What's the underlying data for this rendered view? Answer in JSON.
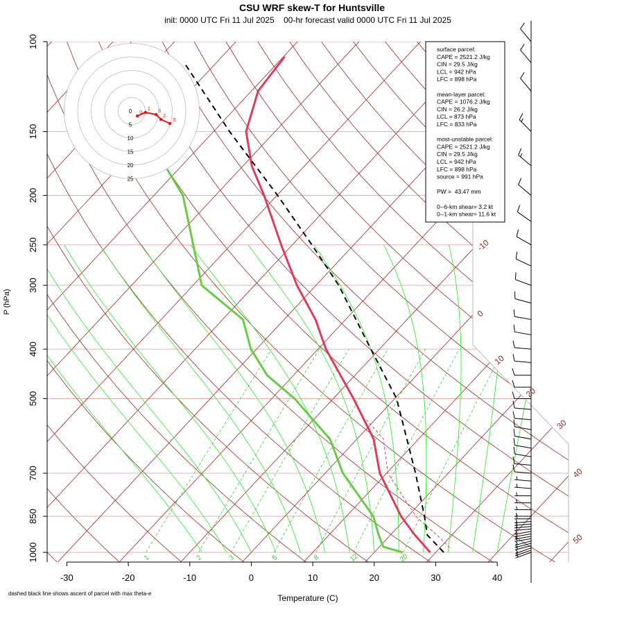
{
  "chart_data": {
    "type": "skewt",
    "title": "CSU WRF skew-T for Huntsville",
    "subtitle": "init: 0000 UTC Fri 11 Jul 2025    00-hr forecast valid 0000 UTC Fri 11 Jul 2025",
    "x_label": "Temperature (C)",
    "y_label": "P (hPa)",
    "note": "dashed black line shows ascent of parcel with max theta-e",
    "xlim": [
      -33.2,
      51.6
    ],
    "xticks": [
      -30,
      -20,
      -10,
      0,
      10,
      20,
      30,
      40
    ],
    "ylim": [
      1000,
      100
    ],
    "yticks": [
      100,
      150,
      200,
      250,
      300,
      400,
      500,
      700,
      850,
      1000
    ],
    "log_y": true,
    "isotherm_labels": [
      -10,
      0,
      10,
      20,
      30,
      40,
      50
    ],
    "mixing_ratio_labels": [
      1,
      2,
      3,
      5,
      8,
      12,
      20
    ],
    "series": [
      {
        "color": "#dc3c5a",
        "linewidth": 3,
        "dashed": false,
        "pressure": [
          1000,
          925,
          850,
          700,
          600,
          500,
          400,
          350,
          300,
          250,
          200,
          175,
          150,
          125,
          107
        ],
        "values": [
          29.1,
          24.0,
          18.9,
          8.9,
          2.7,
          -6.7,
          -18.7,
          -24.9,
          -33.1,
          -41.8,
          -52.1,
          -58.6,
          -64.7,
          -68.9,
          -69.8
        ]
      },
      {
        "color": "#66cc44",
        "linewidth": 3,
        "dashed": false,
        "pressure": [
          1000,
          975,
          925,
          850,
          700,
          600,
          500,
          450,
          400,
          350,
          300,
          250,
          200,
          175
        ],
        "values": [
          24.6,
          20.6,
          18.1,
          14.4,
          2.9,
          -4.4,
          -16.3,
          -24.3,
          -30.9,
          -36.7,
          -48.6,
          -56.1,
          -65.3,
          -72.7
        ]
      },
      {
        "color": "#000000",
        "linewidth": 2,
        "dashed": true,
        "pressure": [
          1000,
          925,
          850,
          700,
          500,
          400,
          300,
          250,
          200,
          150,
          110
        ],
        "values": [
          31.3,
          26.0,
          22.7,
          14.7,
          0.3,
          -11.4,
          -26.3,
          -36.8,
          -49.9,
          -67.4,
          -85.2
        ]
      },
      {
        "color": "#dc3c5a",
        "linewidth": 1,
        "dashed": true,
        "pressure": [
          980,
          925,
          850,
          700,
          600,
          550
        ],
        "values": [
          31.6,
          27.6,
          21.3,
          10.2,
          4.3,
          -1.4
        ]
      }
    ],
    "wind_barbs": {
      "pressure": [
        1000,
        990,
        980,
        970,
        960,
        950,
        940,
        930,
        920,
        910,
        900,
        890,
        880,
        870,
        860,
        850,
        825,
        800,
        775,
        750,
        725,
        700,
        675,
        650,
        625,
        600,
        575,
        550,
        525,
        500,
        475,
        450,
        425,
        400,
        375,
        350,
        325,
        300,
        275,
        250,
        225,
        200,
        175,
        150,
        125,
        110,
        100
      ],
      "speed": [
        3,
        3,
        4,
        4,
        5,
        5,
        5,
        5,
        5,
        5,
        5,
        5,
        5,
        5,
        5,
        5,
        5,
        5,
        5,
        5,
        5,
        8,
        10,
        10,
        10,
        10,
        10,
        12,
        12,
        12,
        10,
        10,
        10,
        10,
        10,
        10,
        12,
        12,
        12,
        10,
        10,
        12,
        15,
        15,
        12,
        10,
        8
      ],
      "direction": [
        250,
        250,
        250,
        255,
        255,
        255,
        260,
        260,
        260,
        260,
        265,
        265,
        265,
        265,
        270,
        270,
        270,
        270,
        270,
        275,
        275,
        275,
        275,
        280,
        280,
        280,
        280,
        275,
        275,
        270,
        270,
        270,
        275,
        275,
        280,
        280,
        285,
        290,
        295,
        300,
        305,
        310,
        310,
        315,
        320,
        320,
        320
      ]
    },
    "hodograph": {
      "ring_labels": [
        0,
        5,
        10,
        15,
        20,
        25
      ],
      "u": [
        2.1,
        5.1,
        9.0,
        10.8,
        14.1
      ],
      "v": [
        -1.8,
        -0.5,
        -1.3,
        -3.1,
        -4.6
      ],
      "point_labels": [
        "0",
        "1",
        "3",
        "2",
        ".5"
      ]
    },
    "info_box": [
      [
        "surface parcel:",
        "CAPE = 2521.2 J/kg",
        "CIN = 29.5 J/kg",
        "LCL = 942 hPa",
        "LFC = 898 hPa"
      ],
      [
        "mean-layer parcel:",
        "CAPE = 1076.2 J/kg",
        "CIN = 26.2 J/kg",
        "LCL = 873 hPa",
        "LFC = 833 hPa"
      ],
      [
        "most-unstable parcel:",
        "CAPE = 2521.2 J/kg",
        "CIN = 29.5 J/kg",
        "LCL = 942 hPa",
        "LFC = 898 hPa",
        "source = 991 hPa"
      ],
      [
        "PW =  43.47 mm"
      ],
      [
        "0--6-km shear= 3.2 kt",
        "0--1-km shear= 11.6 kt"
      ]
    ]
  }
}
